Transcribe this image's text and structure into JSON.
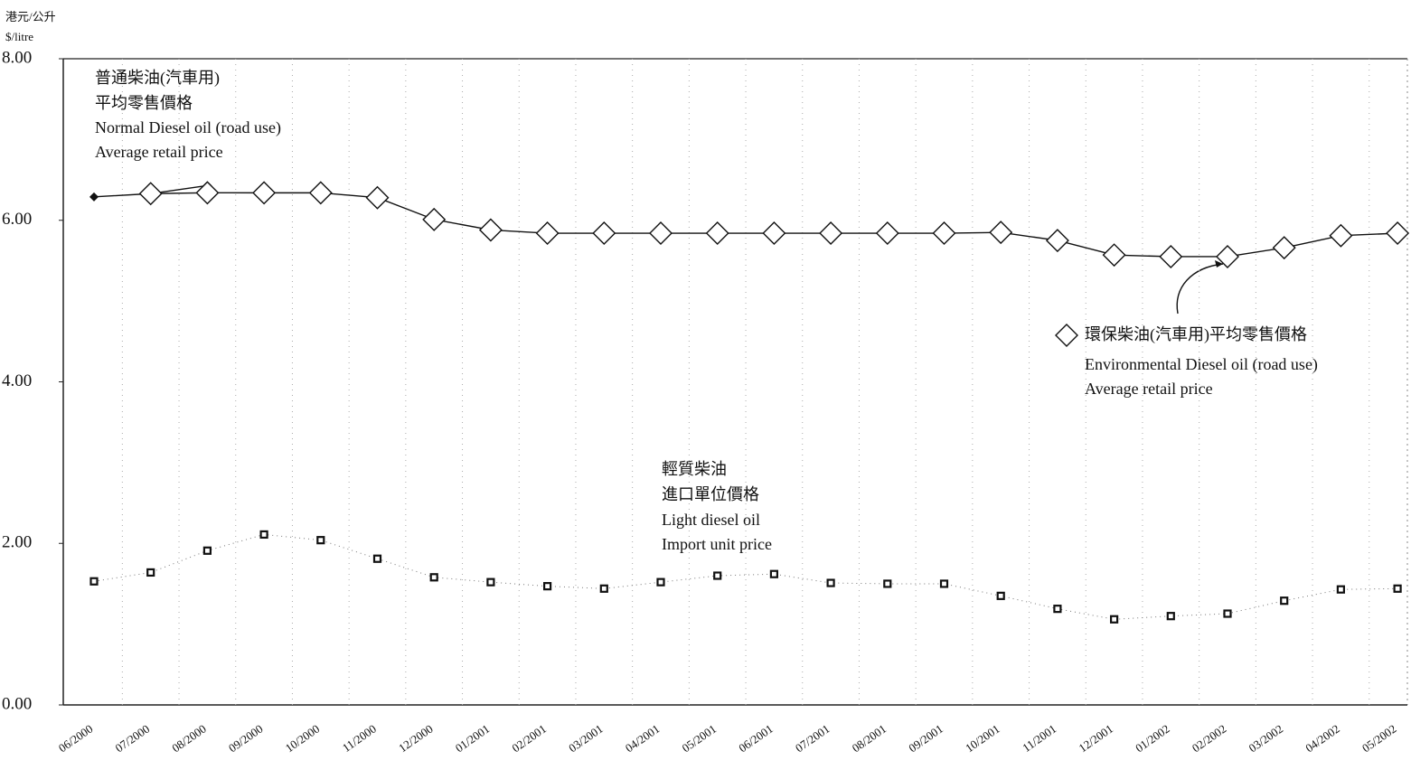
{
  "chart_data": {
    "type": "line",
    "y_label": [
      "港元/公升",
      "$/litre"
    ],
    "categories": [
      "06/2000",
      "07/2000",
      "08/2000",
      "09/2000",
      "10/2000",
      "11/2000",
      "12/2000",
      "01/2001",
      "02/2001",
      "03/2001",
      "04/2001",
      "05/2001",
      "06/2001",
      "07/2001",
      "08/2001",
      "09/2001",
      "10/2001",
      "11/2001",
      "12/2001",
      "01/2002",
      "02/2002",
      "03/2002",
      "04/2002",
      "05/2002"
    ],
    "series": [
      {
        "label": [
          "普通柴油(汽車用)",
          "平均零售價格",
          "Normal Diesel oil (road use)",
          "Average retail price"
        ],
        "color": "#111111",
        "marker": "filled-diamond",
        "line": "solid",
        "values": [
          6.29,
          6.33,
          6.43,
          null,
          null,
          null,
          null,
          null,
          null,
          null,
          null,
          null,
          null,
          null,
          null,
          null,
          null,
          null,
          null,
          null,
          5.62,
          null,
          null,
          null
        ]
      },
      {
        "label": [
          "環保柴油(汽車用)平均零售價格",
          "Environmental Diesel oil (road use)",
          "Average retail price"
        ],
        "color": "#111111",
        "marker": "open-diamond",
        "line": "solid",
        "values": [
          null,
          6.33,
          6.34,
          6.34,
          6.34,
          6.28,
          6.01,
          5.88,
          5.84,
          5.84,
          5.84,
          5.84,
          5.84,
          5.84,
          5.84,
          5.84,
          5.85,
          5.75,
          5.57,
          5.55,
          5.55,
          5.66,
          5.81,
          5.84
        ]
      },
      {
        "label": [
          "輕質柴油",
          "進口單位價格",
          "Light diesel oil",
          "Import unit price"
        ],
        "color": "#111111",
        "marker": "square",
        "line": "dotted",
        "values": [
          1.53,
          1.64,
          1.91,
          2.11,
          2.04,
          1.81,
          1.58,
          1.52,
          1.47,
          1.44,
          1.52,
          1.6,
          1.62,
          1.51,
          1.5,
          1.5,
          1.35,
          1.19,
          1.06,
          1.1,
          1.13,
          1.29,
          1.43,
          1.44
        ]
      }
    ],
    "ylim": [
      0,
      8
    ],
    "yticks": [
      {
        "value": 0,
        "label": "0.00"
      },
      {
        "value": 2,
        "label": "2.00"
      },
      {
        "value": 4,
        "label": "4.00"
      },
      {
        "value": 6,
        "label": "6.00"
      },
      {
        "value": 8,
        "label": "8.00"
      }
    ],
    "grid": true
  }
}
